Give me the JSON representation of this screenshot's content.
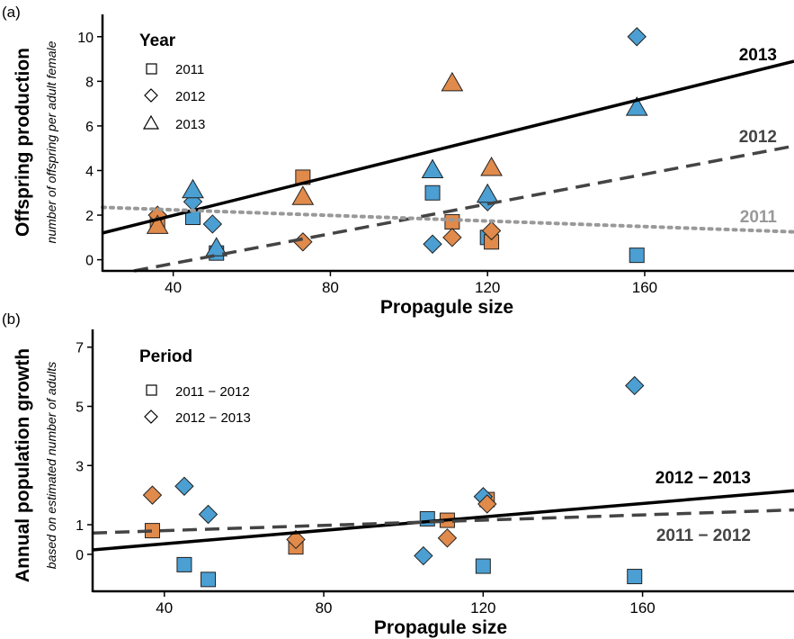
{
  "colors": {
    "blue": "#4b9fd2",
    "orange": "#e08a4b",
    "axis": "#000000",
    "line2013": "#000000",
    "line2012": "#444444",
    "line2011": "#999999"
  },
  "chart_data": [
    {
      "panel_label": "(a)",
      "type": "scatter",
      "xlabel": "Propagule size",
      "ylabel": "Offspring production",
      "ylabel_sub": "number of offspring per adult female",
      "xlim": [
        22,
        198
      ],
      "ylim": [
        -0.5,
        11
      ],
      "xticks": [
        40,
        80,
        120,
        160
      ],
      "yticks": [
        0,
        2,
        4,
        6,
        8,
        10
      ],
      "legend": {
        "title": "Year",
        "position": "top-left",
        "entries": [
          {
            "label": "2011",
            "shape": "square"
          },
          {
            "label": "2012",
            "shape": "diamond"
          },
          {
            "label": "2013",
            "shape": "triangle"
          }
        ]
      },
      "lines": [
        {
          "label": "2013",
          "style": "solid",
          "x": [
            22,
            198
          ],
          "y": [
            1.2,
            8.9
          ]
        },
        {
          "label": "2012",
          "style": "dashed",
          "x": [
            30,
            198
          ],
          "y": [
            -0.5,
            5.1
          ]
        },
        {
          "label": "2011",
          "style": "dotted",
          "x": [
            22,
            198
          ],
          "y": [
            2.35,
            1.25
          ]
        }
      ],
      "points": [
        {
          "x": 36,
          "y": 1.6,
          "shape": "square",
          "color": "orange"
        },
        {
          "x": 45,
          "y": 1.9,
          "shape": "square",
          "color": "blue"
        },
        {
          "x": 51,
          "y": 0.3,
          "shape": "square",
          "color": "blue"
        },
        {
          "x": 73,
          "y": 3.7,
          "shape": "square",
          "color": "orange"
        },
        {
          "x": 106,
          "y": 3.0,
          "shape": "square",
          "color": "blue"
        },
        {
          "x": 111,
          "y": 1.7,
          "shape": "square",
          "color": "orange"
        },
        {
          "x": 120,
          "y": 1.0,
          "shape": "square",
          "color": "blue"
        },
        {
          "x": 121,
          "y": 0.8,
          "shape": "square",
          "color": "orange"
        },
        {
          "x": 158,
          "y": 0.2,
          "shape": "square",
          "color": "blue"
        },
        {
          "x": 36,
          "y": 2.0,
          "shape": "diamond",
          "color": "orange"
        },
        {
          "x": 45,
          "y": 2.6,
          "shape": "diamond",
          "color": "blue"
        },
        {
          "x": 50,
          "y": 1.6,
          "shape": "diamond",
          "color": "blue"
        },
        {
          "x": 73,
          "y": 0.8,
          "shape": "diamond",
          "color": "orange"
        },
        {
          "x": 106,
          "y": 0.7,
          "shape": "diamond",
          "color": "blue"
        },
        {
          "x": 111,
          "y": 1.0,
          "shape": "diamond",
          "color": "orange"
        },
        {
          "x": 120,
          "y": 2.6,
          "shape": "diamond",
          "color": "blue"
        },
        {
          "x": 121,
          "y": 1.3,
          "shape": "diamond",
          "color": "orange"
        },
        {
          "x": 158,
          "y": 10.0,
          "shape": "diamond",
          "color": "blue"
        },
        {
          "x": 36,
          "y": 1.5,
          "shape": "triangle",
          "color": "orange"
        },
        {
          "x": 45,
          "y": 3.1,
          "shape": "triangle",
          "color": "blue"
        },
        {
          "x": 51,
          "y": 0.5,
          "shape": "triangle",
          "color": "blue"
        },
        {
          "x": 73,
          "y": 2.8,
          "shape": "triangle",
          "color": "orange"
        },
        {
          "x": 106,
          "y": 4.0,
          "shape": "triangle",
          "color": "blue"
        },
        {
          "x": 111,
          "y": 7.9,
          "shape": "triangle",
          "color": "orange"
        },
        {
          "x": 120,
          "y": 2.9,
          "shape": "triangle",
          "color": "blue"
        },
        {
          "x": 121,
          "y": 4.1,
          "shape": "triangle",
          "color": "orange"
        },
        {
          "x": 158,
          "y": 6.8,
          "shape": "triangle",
          "color": "blue"
        }
      ]
    },
    {
      "panel_label": "(b)",
      "type": "scatter",
      "xlabel": "Propagule size",
      "ylabel": "Annual population growth",
      "ylabel_sub": "based on estimated number of adults",
      "xlim": [
        22,
        198
      ],
      "ylim": [
        -1.25,
        7.6
      ],
      "xticks": [
        40,
        80,
        120,
        160
      ],
      "yticks": [
        0,
        1,
        3,
        5,
        7
      ],
      "legend": {
        "title": "Period",
        "position": "top-left",
        "entries": [
          {
            "label": "2011 − 2012",
            "shape": "square"
          },
          {
            "label": "2012 − 2013",
            "shape": "diamond"
          }
        ]
      },
      "lines": [
        {
          "label": "2012 − 2013",
          "style": "solid",
          "x": [
            22,
            198
          ],
          "y": [
            0.15,
            2.15
          ]
        },
        {
          "label": "2011 − 2012",
          "style": "dashed",
          "x": [
            22,
            198
          ],
          "y": [
            0.72,
            1.5
          ]
        }
      ],
      "points": [
        {
          "x": 37,
          "y": 0.8,
          "shape": "square",
          "color": "orange"
        },
        {
          "x": 45,
          "y": -0.35,
          "shape": "square",
          "color": "blue"
        },
        {
          "x": 51,
          "y": -0.85,
          "shape": "square",
          "color": "blue"
        },
        {
          "x": 73,
          "y": 0.25,
          "shape": "square",
          "color": "orange"
        },
        {
          "x": 106,
          "y": 1.2,
          "shape": "square",
          "color": "blue"
        },
        {
          "x": 111,
          "y": 1.15,
          "shape": "square",
          "color": "orange"
        },
        {
          "x": 120,
          "y": -0.4,
          "shape": "square",
          "color": "blue"
        },
        {
          "x": 121,
          "y": 1.85,
          "shape": "square",
          "color": "orange"
        },
        {
          "x": 158,
          "y": -0.75,
          "shape": "square",
          "color": "blue"
        },
        {
          "x": 37,
          "y": 2.0,
          "shape": "diamond",
          "color": "orange"
        },
        {
          "x": 45,
          "y": 2.3,
          "shape": "diamond",
          "color": "blue"
        },
        {
          "x": 51,
          "y": 1.35,
          "shape": "diamond",
          "color": "blue"
        },
        {
          "x": 73,
          "y": 0.5,
          "shape": "diamond",
          "color": "orange"
        },
        {
          "x": 105,
          "y": -0.05,
          "shape": "diamond",
          "color": "blue"
        },
        {
          "x": 111,
          "y": 0.55,
          "shape": "diamond",
          "color": "orange"
        },
        {
          "x": 120,
          "y": 1.95,
          "shape": "diamond",
          "color": "blue"
        },
        {
          "x": 121,
          "y": 1.7,
          "shape": "diamond",
          "color": "orange"
        },
        {
          "x": 158,
          "y": 5.7,
          "shape": "diamond",
          "color": "blue"
        }
      ]
    }
  ]
}
